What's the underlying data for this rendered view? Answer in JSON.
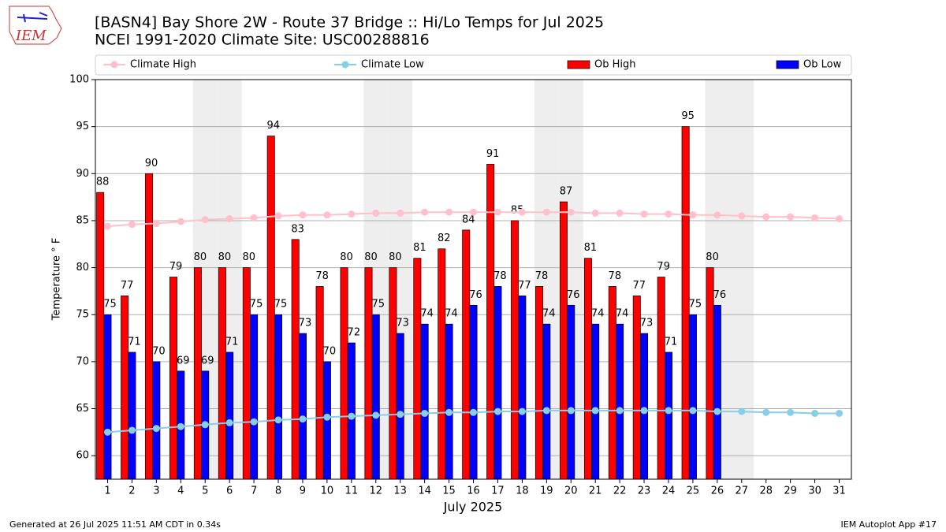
{
  "chart_data": {
    "type": "bar_line",
    "title": "[BASN4] Bay Shore 2W - Route 37 Bridge :: Hi/Lo Temps for Jul 2025",
    "subtitle": "NCEI 1991-2020 Climate Site: USC00288816",
    "logo_text": "IEM",
    "x_label": "July 2025",
    "y_label": "Temperature ° F",
    "footer_left": "Generated at 26 Jul 2025 11:51 AM CDT in 0.34s",
    "footer_right": "IEM Autoplot App #17",
    "x": [
      1,
      2,
      3,
      4,
      5,
      6,
      7,
      8,
      9,
      10,
      11,
      12,
      13,
      14,
      15,
      16,
      17,
      18,
      19,
      20,
      21,
      22,
      23,
      24,
      25,
      26,
      27,
      28,
      29,
      30,
      31
    ],
    "xlim": [
      0.5,
      31.5
    ],
    "xticks": [
      1,
      2,
      3,
      4,
      5,
      6,
      7,
      8,
      9,
      10,
      11,
      12,
      13,
      14,
      15,
      16,
      17,
      18,
      19,
      20,
      21,
      22,
      23,
      24,
      25,
      26,
      27,
      28,
      29,
      30,
      31
    ],
    "ylim": [
      57.5,
      100
    ],
    "yticks": [
      60,
      65,
      70,
      75,
      80,
      85,
      90,
      95,
      100
    ],
    "grid": true,
    "shaded_days": [
      5,
      6,
      12,
      13,
      19,
      20,
      26,
      27
    ],
    "shade_color": "#eeeeee",
    "legend": "top",
    "series": [
      {
        "name": "Climate High",
        "kind": "line",
        "color": "#ffc0cb",
        "values": [
          84.4,
          84.6,
          84.7,
          84.9,
          85.1,
          85.2,
          85.3,
          85.5,
          85.6,
          85.6,
          85.7,
          85.8,
          85.8,
          85.9,
          85.9,
          85.9,
          85.9,
          85.9,
          85.9,
          85.9,
          85.8,
          85.8,
          85.7,
          85.7,
          85.6,
          85.6,
          85.5,
          85.4,
          85.4,
          85.3,
          85.2
        ]
      },
      {
        "name": "Climate Low",
        "kind": "line",
        "color": "#87ceeb",
        "values": [
          62.5,
          62.7,
          62.9,
          63.1,
          63.3,
          63.5,
          63.6,
          63.8,
          63.9,
          64.1,
          64.2,
          64.3,
          64.4,
          64.5,
          64.6,
          64.6,
          64.7,
          64.7,
          64.8,
          64.8,
          64.8,
          64.8,
          64.8,
          64.8,
          64.8,
          64.7,
          64.7,
          64.6,
          64.6,
          64.5,
          64.5
        ]
      },
      {
        "name": "Ob High",
        "kind": "bar",
        "color": "#ff0000",
        "values": [
          88,
          77,
          90,
          79,
          80,
          80,
          80,
          94,
          83,
          78,
          80,
          80,
          80,
          81,
          82,
          84,
          91,
          85,
          78,
          87,
          81,
          78,
          77,
          79,
          95,
          80,
          null,
          null,
          null,
          null,
          null
        ]
      },
      {
        "name": "Ob Low",
        "kind": "bar",
        "color": "#0000ff",
        "values": [
          75,
          71,
          70,
          69,
          69,
          71,
          75,
          75,
          73,
          70,
          72,
          75,
          73,
          74,
          74,
          76,
          78,
          77,
          74,
          76,
          74,
          74,
          73,
          71,
          75,
          76,
          null,
          null,
          null,
          null,
          null
        ]
      }
    ]
  }
}
